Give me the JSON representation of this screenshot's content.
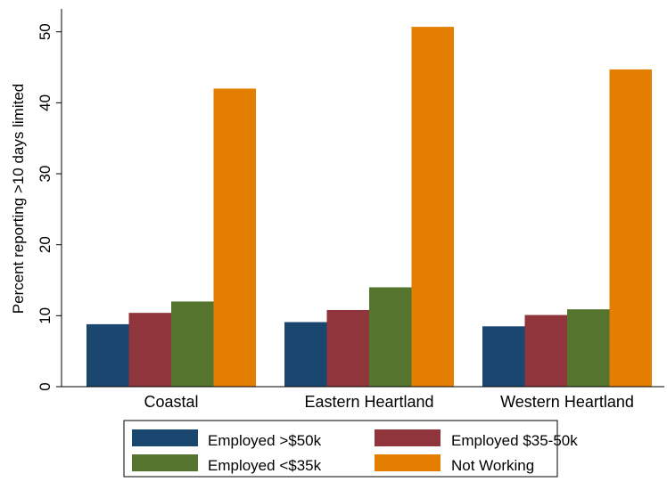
{
  "chart_data": {
    "type": "bar",
    "title": "",
    "xlabel": "",
    "ylabel": "Percent reporting >10 days limited",
    "ylim": [
      0,
      53
    ],
    "yticks": [
      0,
      10,
      20,
      30,
      40,
      50
    ],
    "grid": false,
    "legend_position": "bottom",
    "categories": [
      "Coastal",
      "Eastern Heartland",
      "Western Heartland"
    ],
    "series": [
      {
        "name": "Employed >$50k",
        "color": "#1a476f",
        "values": [
          8.8,
          9.1,
          8.5
        ]
      },
      {
        "name": "Employed $35-50k",
        "color": "#90353b",
        "values": [
          10.4,
          10.8,
          10.1
        ]
      },
      {
        "name": "Employed <$35k",
        "color": "#55752f",
        "values": [
          12.0,
          14.0,
          10.9
        ]
      },
      {
        "name": "Not Working",
        "color": "#e37e00",
        "values": [
          42.0,
          50.7,
          44.7
        ]
      }
    ]
  }
}
